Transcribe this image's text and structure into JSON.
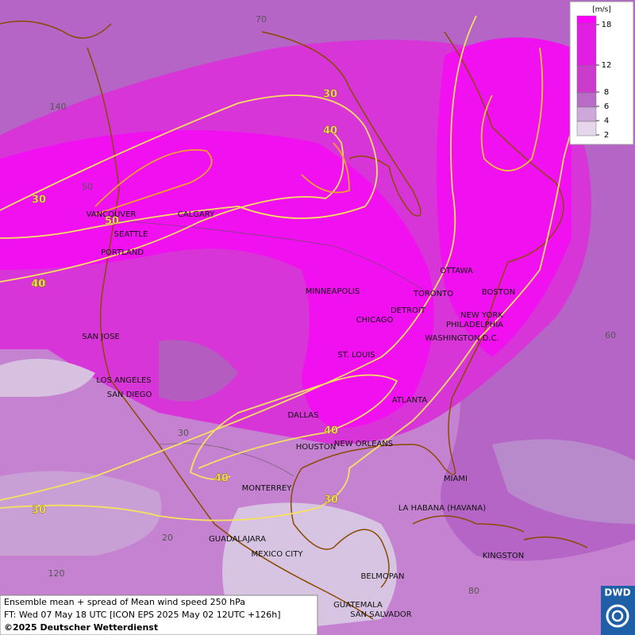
{
  "legend": {
    "unit": "[m/s]",
    "ticks": [
      18,
      12,
      8,
      6,
      4,
      2
    ]
  },
  "cities": [
    "VANCOUVER",
    "CALGARY",
    "SEATTLE",
    "PORTLAND",
    "MINNEAPOLIS",
    "TORONTO",
    "OTTAWA",
    "DETROIT",
    "BOSTON",
    "NEW YORK",
    "PHILADELPHIA",
    "WASHINGTON D.C.",
    "CHICAGO",
    "ST. LOUIS",
    "SAN JOSE",
    "LOS ANGELES",
    "SAN DIEGO",
    "DALLAS",
    "ATLANTA",
    "HOUSTON",
    "NEW ORLEANS",
    "MIAMI",
    "MONTERREY",
    "LA HABANA (HAVANA)",
    "GUADALAJARA",
    "MEXICO CITY",
    "KINGSTON",
    "BELMOPAN",
    "GUATEMALA",
    "SAN SALVADOR"
  ],
  "contour_labels": [
    "30",
    "40",
    "50",
    "40",
    "30",
    "40",
    "40",
    "30",
    "30",
    "40"
  ],
  "grid_labels": [
    "70",
    "140",
    "50",
    "60",
    "30",
    "20",
    "120",
    "80"
  ],
  "footer": {
    "line1": "Ensemble mean + spread of Mean wind speed 250 hPa",
    "line2": "FT: Wed 07 May 18 UTC [ICON EPS 2025 May 02 12UTC +126h]",
    "line3": "©2025 Deutscher Wetterdienst"
  },
  "logo": "DWD"
}
